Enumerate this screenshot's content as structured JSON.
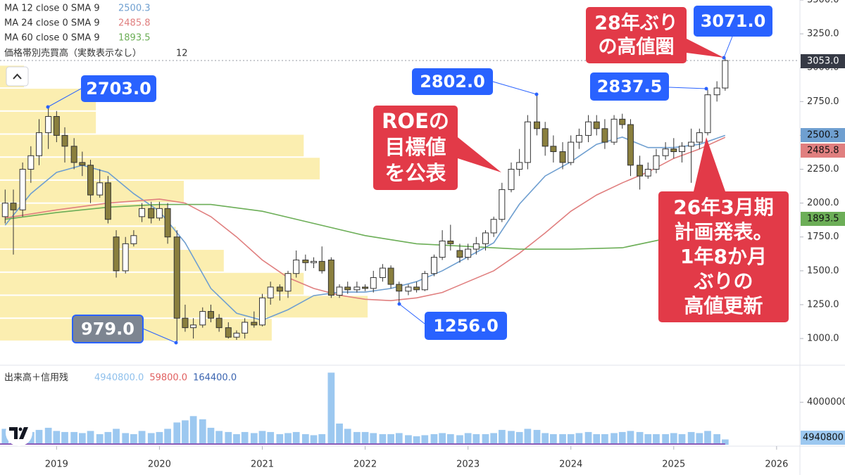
{
  "chart_data": {
    "type": "candlestick",
    "xlim": [
      2018.45,
      2026.22
    ],
    "xticks": [
      2019,
      2020,
      2021,
      2022,
      2023,
      2024,
      2025,
      2026
    ],
    "ylim": [
      808,
      3500
    ],
    "yticks": [
      {
        "value": 1000,
        "label": "1000.0"
      },
      {
        "value": 1250,
        "label": "1250.0"
      },
      {
        "value": 1500,
        "label": "1500.0"
      },
      {
        "value": 1750,
        "label": "1750.0"
      },
      {
        "value": 2000,
        "label": "2000.0"
      },
      {
        "value": 2250,
        "label": "2250.0"
      },
      {
        "value": 2500,
        "label": "2500.0"
      },
      {
        "value": 2750,
        "label": "2750.0"
      },
      {
        "value": 3000,
        "label": "3000.0"
      },
      {
        "value": 3250,
        "label": "3250.0"
      },
      {
        "value": 3500,
        "label": "3500.0"
      }
    ],
    "up_color": "#ffffff",
    "down_color": "#8a7f3e",
    "candles": [
      {
        "x": 2018.5,
        "o": 1900,
        "h": 2100,
        "l": 1850,
        "c": 2000,
        "v": 1500000
      },
      {
        "x": 2018.58,
        "o": 2000,
        "h": 2100,
        "l": 1620,
        "c": 1950,
        "v": 1200000
      },
      {
        "x": 2018.67,
        "o": 1950,
        "h": 2300,
        "l": 1900,
        "c": 2250,
        "v": 1300000
      },
      {
        "x": 2018.75,
        "o": 2250,
        "h": 2420,
        "l": 2150,
        "c": 2350,
        "v": 1200000
      },
      {
        "x": 2018.83,
        "o": 2350,
        "h": 2620,
        "l": 2280,
        "c": 2520,
        "v": 1400000
      },
      {
        "x": 2018.92,
        "o": 2520,
        "h": 2703,
        "l": 2400,
        "c": 2640,
        "v": 1600000
      },
      {
        "x": 2019.0,
        "o": 2640,
        "h": 2680,
        "l": 2450,
        "c": 2500,
        "v": 1300000
      },
      {
        "x": 2019.08,
        "o": 2500,
        "h": 2560,
        "l": 2300,
        "c": 2420,
        "v": 1200000
      },
      {
        "x": 2019.17,
        "o": 2420,
        "h": 2480,
        "l": 2250,
        "c": 2300,
        "v": 1200000
      },
      {
        "x": 2019.25,
        "o": 2300,
        "h": 2380,
        "l": 2200,
        "c": 2280,
        "v": 1100000
      },
      {
        "x": 2019.33,
        "o": 2280,
        "h": 2320,
        "l": 2000,
        "c": 2060,
        "v": 1300000
      },
      {
        "x": 2019.42,
        "o": 2060,
        "h": 2250,
        "l": 2040,
        "c": 2150,
        "v": 1000000
      },
      {
        "x": 2019.5,
        "o": 2150,
        "h": 2200,
        "l": 1850,
        "c": 1880,
        "v": 1200000
      },
      {
        "x": 2019.58,
        "o": 1750,
        "h": 1800,
        "l": 1450,
        "c": 1500,
        "v": 1500000
      },
      {
        "x": 2019.67,
        "o": 1500,
        "h": 1750,
        "l": 1480,
        "c": 1700,
        "v": 1100000
      },
      {
        "x": 2019.75,
        "o": 1700,
        "h": 1800,
        "l": 1680,
        "c": 1760,
        "v": 1000000
      },
      {
        "x": 2019.83,
        "o": 1900,
        "h": 2000,
        "l": 1860,
        "c": 1960,
        "v": 1300000
      },
      {
        "x": 2019.92,
        "o": 1960,
        "h": 2010,
        "l": 1850,
        "c": 1890,
        "v": 1100000
      },
      {
        "x": 2020.0,
        "o": 1890,
        "h": 2010,
        "l": 1870,
        "c": 1960,
        "v": 1200000
      },
      {
        "x": 2020.08,
        "o": 1960,
        "h": 2000,
        "l": 1700,
        "c": 1750,
        "v": 1500000
      },
      {
        "x": 2020.17,
        "o": 1750,
        "h": 1800,
        "l": 979,
        "c": 1150,
        "v": 2100000
      },
      {
        "x": 2020.25,
        "o": 1150,
        "h": 1250,
        "l": 1050,
        "c": 1080,
        "v": 2300000
      },
      {
        "x": 2020.33,
        "o": 1080,
        "h": 1150,
        "l": 1000,
        "c": 1100,
        "v": 2700000
      },
      {
        "x": 2020.42,
        "o": 1100,
        "h": 1230,
        "l": 1080,
        "c": 1200,
        "v": 2400000
      },
      {
        "x": 2020.5,
        "o": 1200,
        "h": 1250,
        "l": 1120,
        "c": 1150,
        "v": 1600000
      },
      {
        "x": 2020.58,
        "o": 1150,
        "h": 1180,
        "l": 1050,
        "c": 1080,
        "v": 1300000
      },
      {
        "x": 2020.67,
        "o": 1080,
        "h": 1120,
        "l": 1000,
        "c": 1010,
        "v": 1200000
      },
      {
        "x": 2020.75,
        "o": 1010,
        "h": 1060,
        "l": 990,
        "c": 1040,
        "v": 1000000
      },
      {
        "x": 2020.83,
        "o": 1040,
        "h": 1150,
        "l": 1000,
        "c": 1120,
        "v": 1200000
      },
      {
        "x": 2020.92,
        "o": 1120,
        "h": 1200,
        "l": 1080,
        "c": 1100,
        "v": 1100000
      },
      {
        "x": 2021.0,
        "o": 1100,
        "h": 1330,
        "l": 1090,
        "c": 1300,
        "v": 1300000
      },
      {
        "x": 2021.08,
        "o": 1300,
        "h": 1420,
        "l": 1250,
        "c": 1380,
        "v": 1200000
      },
      {
        "x": 2021.17,
        "o": 1380,
        "h": 1400,
        "l": 1280,
        "c": 1350,
        "v": 1000000
      },
      {
        "x": 2021.25,
        "o": 1350,
        "h": 1500,
        "l": 1300,
        "c": 1480,
        "v": 1100000
      },
      {
        "x": 2021.33,
        "o": 1480,
        "h": 1650,
        "l": 1450,
        "c": 1580,
        "v": 1200000
      },
      {
        "x": 2021.42,
        "o": 1580,
        "h": 1620,
        "l": 1500,
        "c": 1560,
        "v": 1000000
      },
      {
        "x": 2021.5,
        "o": 1560,
        "h": 1600,
        "l": 1520,
        "c": 1570,
        "v": 900000
      },
      {
        "x": 2021.58,
        "o": 1570,
        "h": 1680,
        "l": 1480,
        "c": 1500,
        "v": 1000000
      },
      {
        "x": 2021.67,
        "o": 1580,
        "h": 1600,
        "l": 1300,
        "c": 1320,
        "v": 6800000
      },
      {
        "x": 2021.75,
        "o": 1320,
        "h": 1400,
        "l": 1300,
        "c": 1380,
        "v": 2000000
      },
      {
        "x": 2021.83,
        "o": 1380,
        "h": 1420,
        "l": 1330,
        "c": 1360,
        "v": 1500000
      },
      {
        "x": 2021.92,
        "o": 1360,
        "h": 1420,
        "l": 1340,
        "c": 1380,
        "v": 1200000
      },
      {
        "x": 2022.0,
        "o": 1380,
        "h": 1400,
        "l": 1350,
        "c": 1370,
        "v": 1200000
      },
      {
        "x": 2022.08,
        "o": 1370,
        "h": 1500,
        "l": 1340,
        "c": 1450,
        "v": 1100000
      },
      {
        "x": 2022.17,
        "o": 1450,
        "h": 1550,
        "l": 1420,
        "c": 1520,
        "v": 1000000
      },
      {
        "x": 2022.25,
        "o": 1520,
        "h": 1540,
        "l": 1370,
        "c": 1400,
        "v": 1000000
      },
      {
        "x": 2022.33,
        "o": 1400,
        "h": 1420,
        "l": 1256,
        "c": 1350,
        "v": 1100000
      },
      {
        "x": 2022.42,
        "o": 1350,
        "h": 1400,
        "l": 1320,
        "c": 1380,
        "v": 900000
      },
      {
        "x": 2022.5,
        "o": 1380,
        "h": 1420,
        "l": 1340,
        "c": 1360,
        "v": 800000
      },
      {
        "x": 2022.58,
        "o": 1360,
        "h": 1500,
        "l": 1350,
        "c": 1480,
        "v": 900000
      },
      {
        "x": 2022.67,
        "o": 1480,
        "h": 1620,
        "l": 1460,
        "c": 1600,
        "v": 1000000
      },
      {
        "x": 2022.75,
        "o": 1600,
        "h": 1800,
        "l": 1580,
        "c": 1720,
        "v": 1100000
      },
      {
        "x": 2022.83,
        "o": 1720,
        "h": 1840,
        "l": 1650,
        "c": 1700,
        "v": 1000000
      },
      {
        "x": 2022.92,
        "o": 1650,
        "h": 1700,
        "l": 1560,
        "c": 1600,
        "v": 900000
      },
      {
        "x": 2023.0,
        "o": 1600,
        "h": 1700,
        "l": 1580,
        "c": 1660,
        "v": 1100000
      },
      {
        "x": 2023.08,
        "o": 1660,
        "h": 1750,
        "l": 1620,
        "c": 1700,
        "v": 1000000
      },
      {
        "x": 2023.17,
        "o": 1700,
        "h": 1800,
        "l": 1650,
        "c": 1780,
        "v": 1000000
      },
      {
        "x": 2023.25,
        "o": 1780,
        "h": 1900,
        "l": 1750,
        "c": 1880,
        "v": 1100000
      },
      {
        "x": 2023.33,
        "o": 1880,
        "h": 2150,
        "l": 1860,
        "c": 2100,
        "v": 1400000
      },
      {
        "x": 2023.42,
        "o": 2100,
        "h": 2300,
        "l": 2080,
        "c": 2250,
        "v": 1300000
      },
      {
        "x": 2023.5,
        "o": 2250,
        "h": 2400,
        "l": 2200,
        "c": 2300,
        "v": 1200000
      },
      {
        "x": 2023.58,
        "o": 2300,
        "h": 2650,
        "l": 2250,
        "c": 2600,
        "v": 1500000
      },
      {
        "x": 2023.67,
        "o": 2600,
        "h": 2802,
        "l": 2500,
        "c": 2550,
        "v": 1400000
      },
      {
        "x": 2023.75,
        "o": 2550,
        "h": 2600,
        "l": 2350,
        "c": 2420,
        "v": 1100000
      },
      {
        "x": 2023.83,
        "o": 2420,
        "h": 2500,
        "l": 2300,
        "c": 2380,
        "v": 1000000
      },
      {
        "x": 2023.92,
        "o": 2380,
        "h": 2450,
        "l": 2250,
        "c": 2300,
        "v": 1000000
      },
      {
        "x": 2024.0,
        "o": 2300,
        "h": 2500,
        "l": 2280,
        "c": 2450,
        "v": 1000000
      },
      {
        "x": 2024.08,
        "o": 2450,
        "h": 2550,
        "l": 2400,
        "c": 2500,
        "v": 1100000
      },
      {
        "x": 2024.17,
        "o": 2500,
        "h": 2650,
        "l": 2450,
        "c": 2600,
        "v": 1200000
      },
      {
        "x": 2024.25,
        "o": 2600,
        "h": 2650,
        "l": 2500,
        "c": 2550,
        "v": 1000000
      },
      {
        "x": 2024.33,
        "o": 2550,
        "h": 2620,
        "l": 2400,
        "c": 2450,
        "v": 1000000
      },
      {
        "x": 2024.42,
        "o": 2450,
        "h": 2650,
        "l": 2430,
        "c": 2620,
        "v": 1100000
      },
      {
        "x": 2024.5,
        "o": 2620,
        "h": 2660,
        "l": 2550,
        "c": 2580,
        "v": 1200000
      },
      {
        "x": 2024.58,
        "o": 2580,
        "h": 2620,
        "l": 2200,
        "c": 2280,
        "v": 1300000
      },
      {
        "x": 2024.67,
        "o": 2280,
        "h": 2350,
        "l": 2100,
        "c": 2200,
        "v": 1200000
      },
      {
        "x": 2024.75,
        "o": 2200,
        "h": 2300,
        "l": 2180,
        "c": 2250,
        "v": 1000000
      },
      {
        "x": 2024.83,
        "o": 2250,
        "h": 2400,
        "l": 2220,
        "c": 2350,
        "v": 1000000
      },
      {
        "x": 2024.92,
        "o": 2350,
        "h": 2450,
        "l": 2320,
        "c": 2400,
        "v": 1000000
      },
      {
        "x": 2025.0,
        "o": 2400,
        "h": 2480,
        "l": 2330,
        "c": 2380,
        "v": 1100000
      },
      {
        "x": 2025.08,
        "o": 2380,
        "h": 2450,
        "l": 2300,
        "c": 2420,
        "v": 1000000
      },
      {
        "x": 2025.17,
        "o": 2420,
        "h": 2550,
        "l": 2150,
        "c": 2450,
        "v": 1200000
      },
      {
        "x": 2025.25,
        "o": 2450,
        "h": 2550,
        "l": 2400,
        "c": 2520,
        "v": 1100000
      },
      {
        "x": 2025.33,
        "o": 2520,
        "h": 2837.5,
        "l": 2500,
        "c": 2800,
        "v": 1300000
      },
      {
        "x": 2025.42,
        "o": 2800,
        "h": 2900,
        "l": 2750,
        "c": 2850,
        "v": 1000000
      },
      {
        "x": 2025.5,
        "o": 2850,
        "h": 3071,
        "l": 2830,
        "c": 3053,
        "v": 500000
      }
    ],
    "ma_series": [
      {
        "name": "MA 12 close 0 SMA 9",
        "color": "#6f9fd0",
        "legend_value": "2500.3",
        "x": [
          2018.5,
          2018.75,
          2019.0,
          2019.25,
          2019.5,
          2019.75,
          2020.0,
          2020.25,
          2020.5,
          2020.75,
          2021.0,
          2021.25,
          2021.5,
          2021.75,
          2022.0,
          2022.25,
          2022.5,
          2022.75,
          2023.0,
          2023.25,
          2023.5,
          2023.75,
          2024.0,
          2024.25,
          2024.5,
          2024.75,
          2025.0,
          2025.25,
          2025.5
        ],
        "values": [
          1837,
          2070,
          2227,
          2280,
          2227,
          2070,
          1940,
          1707,
          1370,
          1187,
          1135,
          1213,
          1317,
          1343,
          1343,
          1370,
          1420,
          1500,
          1603,
          1707,
          1993,
          2200,
          2305,
          2434,
          2487,
          2410,
          2410,
          2434,
          2500.3
        ]
      },
      {
        "name": "MA 24 close 0 SMA 9",
        "color": "#e07f7f",
        "legend_value": "2485.8",
        "x": [
          2018.5,
          2019.0,
          2019.5,
          2020.0,
          2020.25,
          2020.5,
          2020.75,
          2021.0,
          2021.25,
          2021.5,
          2021.75,
          2022.0,
          2022.25,
          2022.5,
          2022.75,
          2023.0,
          2023.25,
          2023.5,
          2023.75,
          2024.0,
          2024.25,
          2024.5,
          2024.75,
          2025.0,
          2025.25,
          2025.5
        ],
        "values": [
          1890,
          1950,
          2000,
          2030,
          2000,
          1900,
          1750,
          1580,
          1450,
          1370,
          1320,
          1290,
          1280,
          1300,
          1340,
          1420,
          1500,
          1630,
          1780,
          1940,
          2060,
          2150,
          2230,
          2330,
          2400,
          2485.8
        ]
      },
      {
        "name": "MA 60 close 0 SMA 9",
        "color": "#6cae57",
        "legend_value": "1893.5",
        "x": [
          2018.5,
          2019.0,
          2019.5,
          2020.0,
          2020.5,
          2021.0,
          2021.5,
          2022.0,
          2022.5,
          2023.0,
          2023.5,
          2024.0,
          2024.5,
          2025.0,
          2025.5
        ],
        "values": [
          1880,
          1930,
          1970,
          1990,
          1990,
          1940,
          1850,
          1760,
          1700,
          1680,
          1660,
          1660,
          1670,
          1750,
          1893.5
        ]
      }
    ],
    "volume_profile": {
      "name": "価格帯別売買高（実数表示なし）",
      "legend_value": "12",
      "color": "#fbeeb0",
      "xlim": [
        0,
        100
      ],
      "bins": [
        980,
        1150,
        1320,
        1490,
        1660,
        1830,
        2000,
        2170,
        2340,
        2510,
        2680,
        2850,
        3020
      ],
      "values": [
        34,
        46,
        38,
        28,
        22,
        21,
        23,
        40,
        38,
        12,
        12,
        3
      ]
    },
    "price_tags": [
      {
        "value": 3053,
        "label": "3053.0",
        "color": "#363a45"
      },
      {
        "value": 2500.3,
        "label": "2500.3",
        "color": "#6f9fd0"
      },
      {
        "value": 2485.8,
        "label": "2485.8",
        "color": "#e07f7f"
      },
      {
        "value": 1893.5,
        "label": "1893.5",
        "color": "#6cae57"
      }
    ],
    "volume": {
      "name": "出来高＋信用残",
      "color": "#9cc8f0",
      "ylim": [
        0,
        7100000
      ],
      "yticks": [
        4000000
      ],
      "tag": "4940800",
      "legend": [
        {
          "label": "4940800.0",
          "color": "#8fc0ec"
        },
        {
          "label": "59800.0",
          "color": "#e06060"
        },
        {
          "label": "164400.0",
          "color": "#3a64b0"
        }
      ]
    },
    "annotations": [
      {
        "lines": [
          "2703.0"
        ],
        "color": "#2962ff"
      },
      {
        "lines": [
          "979.0"
        ],
        "color": "#7d8591"
      },
      {
        "lines": [
          "2802.0"
        ],
        "color": "#2962ff"
      },
      {
        "lines": [
          "1256.0"
        ],
        "color": "#2962ff"
      },
      {
        "lines": [
          "2837.5"
        ],
        "color": "#2962ff"
      },
      {
        "lines": [
          "3071.0"
        ],
        "color": "#2962ff"
      },
      {
        "lines": [
          "28年ぶり",
          "の高値圏"
        ],
        "color": "#e23a48"
      },
      {
        "lines": [
          "ROEの",
          "目標値",
          "を公表"
        ],
        "color": "#e23a48"
      },
      {
        "lines": [
          "26年3月期",
          "計画発表。",
          "1年8か月",
          "ぶりの",
          "高値更新"
        ],
        "color": "#e23a48"
      }
    ]
  }
}
